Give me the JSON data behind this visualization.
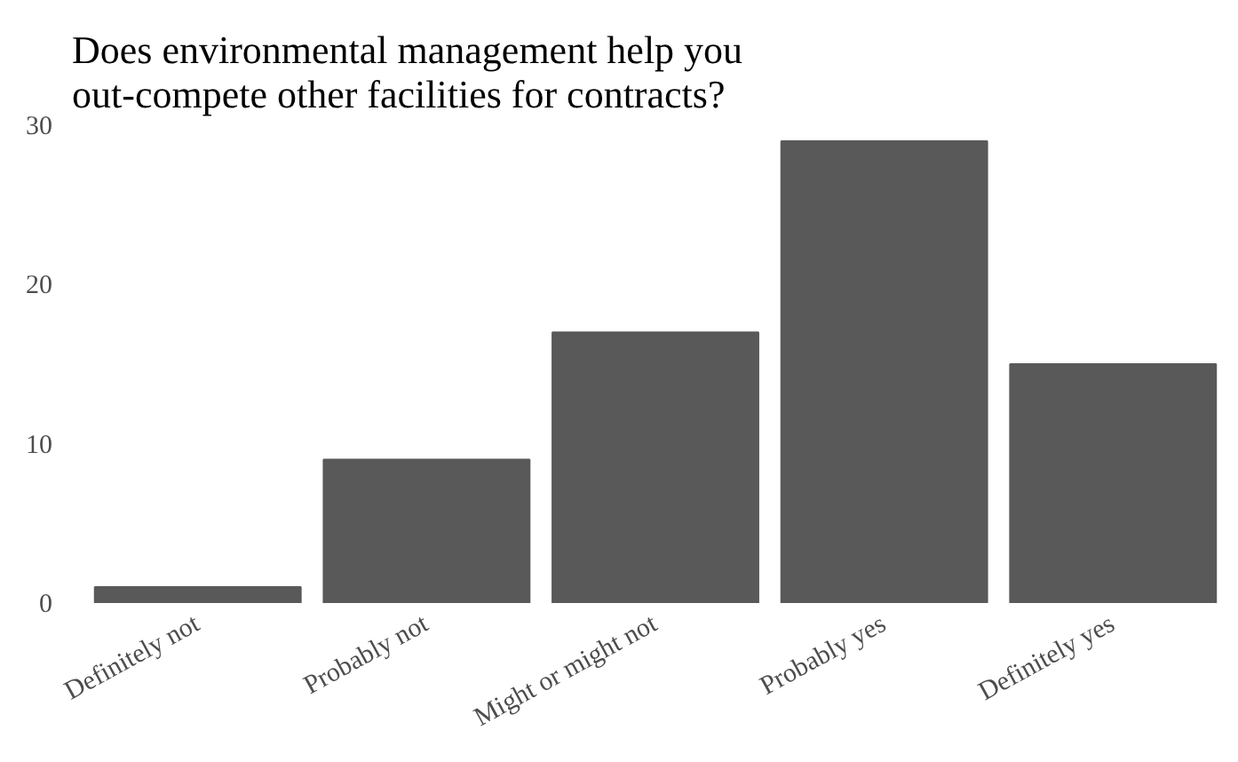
{
  "chart_data": {
    "type": "bar",
    "title": "Does environmental management help you\nout-compete other facilities for contracts?",
    "categories": [
      "Definitely not",
      "Probably not",
      "Might or might not",
      "Probably yes",
      "Definitely yes"
    ],
    "values": [
      1,
      9,
      17,
      29,
      15
    ],
    "color": "#595959",
    "ylim": [
      0,
      30
    ],
    "yticks": [
      0,
      10,
      20,
      30
    ],
    "grid": false
  }
}
